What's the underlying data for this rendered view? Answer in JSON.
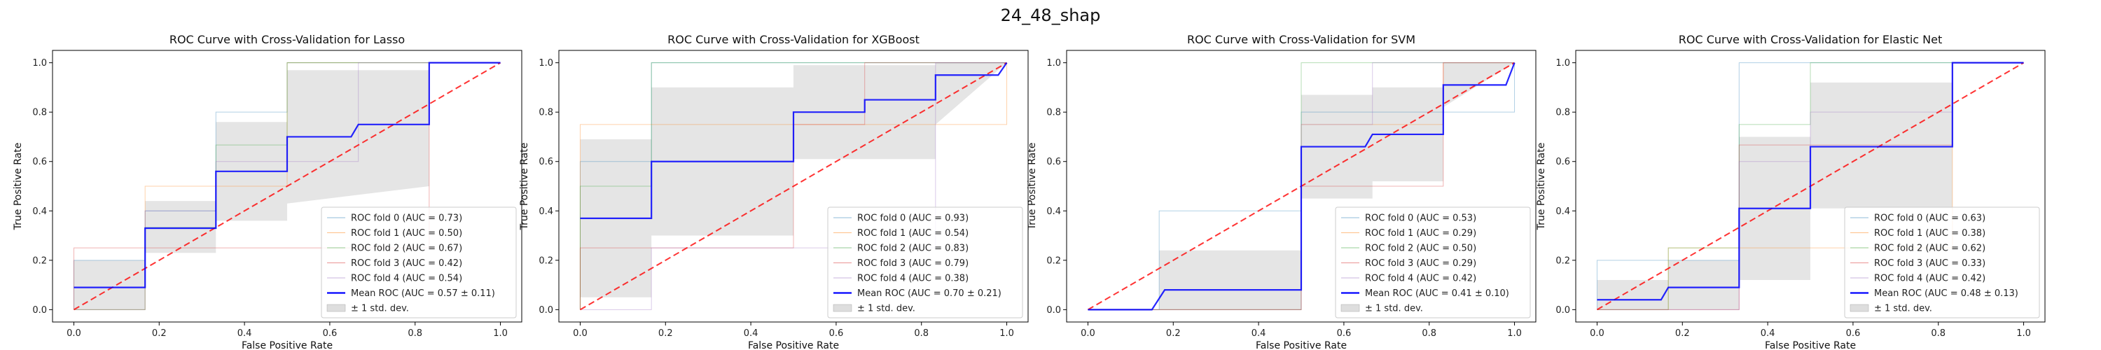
{
  "figure": {
    "suptitle": "24_48_shap"
  },
  "chart_data": [
    {
      "type": "line",
      "title": "ROC Curve with Cross-Validation for Lasso",
      "xlabel": "False Positive Rate",
      "ylabel": "True Positive Rate",
      "xlim": [
        -0.05,
        1.05
      ],
      "ylim": [
        -0.05,
        1.05
      ],
      "xticks": [
        "0.0",
        "0.2",
        "0.4",
        "0.6",
        "0.8",
        "1.0"
      ],
      "yticks": [
        "0.0",
        "0.2",
        "0.4",
        "0.6",
        "0.8",
        "1.0"
      ],
      "legend_position": "lower-right",
      "legend_labels": [
        "ROC fold 0 (AUC = 0.73)",
        "ROC fold 1 (AUC = 0.50)",
        "ROC fold 2 (AUC = 0.67)",
        "ROC fold 3 (AUC = 0.42)",
        "ROC fold 4 (AUC = 0.54)",
        "Mean ROC (AUC = 0.57 ± 0.11)",
        "± 1 std. dev."
      ],
      "folds": [
        [
          [
            0,
            0
          ],
          [
            0,
            0.2
          ],
          [
            0.167,
            0.2
          ],
          [
            0.167,
            0.4
          ],
          [
            0.333,
            0.4
          ],
          [
            0.333,
            0.8
          ],
          [
            0.5,
            0.8
          ],
          [
            0.5,
            1
          ],
          [
            1,
            1
          ]
        ],
        [
          [
            0,
            0
          ],
          [
            0.167,
            0
          ],
          [
            0.167,
            0.5
          ],
          [
            0.5,
            0.5
          ],
          [
            0.5,
            1
          ],
          [
            1,
            1
          ]
        ],
        [
          [
            0,
            0
          ],
          [
            0.167,
            0
          ],
          [
            0.167,
            0.333
          ],
          [
            0.333,
            0.333
          ],
          [
            0.333,
            0.667
          ],
          [
            0.5,
            0.667
          ],
          [
            0.5,
            1
          ],
          [
            1,
            1
          ]
        ],
        [
          [
            0,
            0
          ],
          [
            0,
            0.25
          ],
          [
            0.833,
            0.25
          ],
          [
            0.833,
            1
          ],
          [
            1,
            1
          ]
        ],
        [
          [
            0,
            0
          ],
          [
            0.167,
            0
          ],
          [
            0.167,
            0.4
          ],
          [
            0.333,
            0.4
          ],
          [
            0.333,
            0.6
          ],
          [
            0.667,
            0.6
          ],
          [
            0.667,
            1
          ],
          [
            1,
            1
          ]
        ]
      ],
      "mean": [
        [
          0,
          0.09
        ],
        [
          0.167,
          0.09
        ],
        [
          0.167,
          0.33
        ],
        [
          0.333,
          0.33
        ],
        [
          0.333,
          0.56
        ],
        [
          0.5,
          0.56
        ],
        [
          0.5,
          0.7
        ],
        [
          0.65,
          0.7
        ],
        [
          0.667,
          0.75
        ],
        [
          0.833,
          0.75
        ],
        [
          0.833,
          1
        ],
        [
          1,
          1
        ]
      ],
      "band": [
        [
          0,
          0,
          0.2
        ],
        [
          0.167,
          0,
          0.2
        ],
        [
          0.167,
          0.23,
          0.44
        ],
        [
          0.333,
          0.23,
          0.44
        ],
        [
          0.333,
          0.36,
          0.76
        ],
        [
          0.5,
          0.36,
          0.76
        ],
        [
          0.5,
          0.43,
          0.97
        ],
        [
          0.833,
          0.5,
          0.97
        ],
        [
          0.833,
          1,
          1
        ],
        [
          1,
          1,
          1
        ]
      ],
      "diagonal": [
        [
          0,
          0
        ],
        [
          1,
          1
        ]
      ]
    },
    {
      "type": "line",
      "title": "ROC Curve with Cross-Validation for XGBoost",
      "xlabel": "False Positive Rate",
      "ylabel": "True Positive Rate",
      "xlim": [
        -0.05,
        1.05
      ],
      "ylim": [
        -0.05,
        1.05
      ],
      "xticks": [
        "0.0",
        "0.2",
        "0.4",
        "0.6",
        "0.8",
        "1.0"
      ],
      "yticks": [
        "0.0",
        "0.2",
        "0.4",
        "0.6",
        "0.8",
        "1.0"
      ],
      "legend_position": "lower-right",
      "legend_labels": [
        "ROC fold 0 (AUC = 0.93)",
        "ROC fold 1 (AUC = 0.54)",
        "ROC fold 2 (AUC = 0.83)",
        "ROC fold 3 (AUC = 0.79)",
        "ROC fold 4 (AUC = 0.38)",
        "Mean ROC (AUC = 0.70 ± 0.21)",
        "± 1 std. dev."
      ],
      "folds": [
        [
          [
            0,
            0
          ],
          [
            0,
            0.6
          ],
          [
            0.167,
            0.6
          ],
          [
            0.167,
            1
          ],
          [
            1,
            1
          ]
        ],
        [
          [
            0,
            0
          ],
          [
            0,
            0.75
          ],
          [
            0.5,
            0.75
          ],
          [
            0.5,
            0.75
          ],
          [
            1,
            0.75
          ],
          [
            1,
            1
          ]
        ],
        [
          [
            0,
            0
          ],
          [
            0,
            0.5
          ],
          [
            0.167,
            0.5
          ],
          [
            0.167,
            1
          ],
          [
            1,
            1
          ]
        ],
        [
          [
            0,
            0
          ],
          [
            0,
            0.25
          ],
          [
            0.5,
            0.25
          ],
          [
            0.5,
            0.75
          ],
          [
            0.667,
            0.75
          ],
          [
            0.667,
            1
          ],
          [
            1,
            1
          ]
        ],
        [
          [
            0,
            0
          ],
          [
            0.167,
            0
          ],
          [
            0.167,
            0.25
          ],
          [
            0.833,
            0.25
          ],
          [
            0.833,
            1
          ],
          [
            1,
            1
          ]
        ]
      ],
      "mean": [
        [
          0,
          0.37
        ],
        [
          0.167,
          0.37
        ],
        [
          0.167,
          0.6
        ],
        [
          0.5,
          0.6
        ],
        [
          0.5,
          0.8
        ],
        [
          0.667,
          0.8
        ],
        [
          0.667,
          0.85
        ],
        [
          0.833,
          0.85
        ],
        [
          0.833,
          0.95
        ],
        [
          0.98,
          0.95
        ],
        [
          1,
          1
        ]
      ],
      "band": [
        [
          0,
          0.05,
          0.69
        ],
        [
          0.167,
          0.05,
          0.69
        ],
        [
          0.167,
          0.3,
          0.9
        ],
        [
          0.5,
          0.3,
          0.9
        ],
        [
          0.5,
          0.61,
          0.99
        ],
        [
          0.833,
          0.61,
          0.99
        ],
        [
          0.833,
          0.75,
          1
        ],
        [
          1,
          1,
          1
        ]
      ],
      "diagonal": [
        [
          0,
          0
        ],
        [
          1,
          1
        ]
      ]
    },
    {
      "type": "line",
      "title": "ROC Curve with Cross-Validation for SVM",
      "xlabel": "False Positive Rate",
      "ylabel": "True Positive Rate",
      "xlim": [
        -0.05,
        1.05
      ],
      "ylim": [
        -0.05,
        1.05
      ],
      "xticks": [
        "0.0",
        "0.2",
        "0.4",
        "0.6",
        "0.8",
        "1.0"
      ],
      "yticks": [
        "0.0",
        "0.2",
        "0.4",
        "0.6",
        "0.8",
        "1.0"
      ],
      "legend_position": "lower-right",
      "legend_labels": [
        "ROC fold 0 (AUC = 0.53)",
        "ROC fold 1 (AUC = 0.29)",
        "ROC fold 2 (AUC = 0.50)",
        "ROC fold 3 (AUC = 0.29)",
        "ROC fold 4 (AUC = 0.42)",
        "Mean ROC (AUC = 0.41 ± 0.10)",
        "± 1 std. dev."
      ],
      "folds": [
        [
          [
            0,
            0
          ],
          [
            0.167,
            0
          ],
          [
            0.167,
            0.4
          ],
          [
            0.5,
            0.4
          ],
          [
            0.5,
            0.8
          ],
          [
            1,
            0.8
          ],
          [
            1,
            1
          ]
        ],
        [
          [
            0,
            0
          ],
          [
            0.5,
            0
          ],
          [
            0.5,
            0.75
          ],
          [
            0.833,
            0.75
          ],
          [
            0.833,
            1
          ],
          [
            1,
            1
          ]
        ],
        [
          [
            0,
            0
          ],
          [
            0.5,
            0
          ],
          [
            0.5,
            1
          ],
          [
            1,
            1
          ]
        ],
        [
          [
            0,
            0
          ],
          [
            0.5,
            0
          ],
          [
            0.5,
            0.5
          ],
          [
            0.833,
            0.5
          ],
          [
            0.833,
            1
          ],
          [
            1,
            1
          ]
        ],
        [
          [
            0,
            0
          ],
          [
            0.5,
            0
          ],
          [
            0.5,
            0.75
          ],
          [
            0.667,
            0.75
          ],
          [
            0.667,
            1
          ],
          [
            1,
            1
          ]
        ]
      ],
      "mean": [
        [
          0,
          0
        ],
        [
          0.15,
          0
        ],
        [
          0.18,
          0.08
        ],
        [
          0.5,
          0.08
        ],
        [
          0.5,
          0.66
        ],
        [
          0.65,
          0.66
        ],
        [
          0.667,
          0.71
        ],
        [
          0.833,
          0.71
        ],
        [
          0.833,
          0.91
        ],
        [
          0.98,
          0.91
        ],
        [
          1,
          1
        ]
      ],
      "band": [
        [
          0,
          0,
          0
        ],
        [
          0.167,
          0,
          0
        ],
        [
          0.167,
          0,
          0.24
        ],
        [
          0.5,
          0,
          0.24
        ],
        [
          0.5,
          0.45,
          0.87
        ],
        [
          0.667,
          0.45,
          0.87
        ],
        [
          0.667,
          0.52,
          0.9
        ],
        [
          0.833,
          0.52,
          0.9
        ],
        [
          0.833,
          0.82,
          1
        ],
        [
          1,
          1,
          1
        ]
      ],
      "diagonal": [
        [
          0,
          0
        ],
        [
          1,
          1
        ]
      ]
    },
    {
      "type": "line",
      "title": "ROC Curve with Cross-Validation for Elastic Net",
      "xlabel": "False Positive Rate",
      "ylabel": "True Positive Rate",
      "xlim": [
        -0.05,
        1.05
      ],
      "ylim": [
        -0.05,
        1.05
      ],
      "xticks": [
        "0.0",
        "0.2",
        "0.4",
        "0.6",
        "0.8",
        "1.0"
      ],
      "yticks": [
        "0.0",
        "0.2",
        "0.4",
        "0.6",
        "0.8",
        "1.0"
      ],
      "legend_position": "lower-right",
      "legend_labels": [
        "ROC fold 0 (AUC = 0.63)",
        "ROC fold 1 (AUC = 0.38)",
        "ROC fold 2 (AUC = 0.62)",
        "ROC fold 3 (AUC = 0.33)",
        "ROC fold 4 (AUC = 0.42)",
        "Mean ROC (AUC = 0.48 ± 0.13)",
        "± 1 std. dev."
      ],
      "folds": [
        [
          [
            0,
            0
          ],
          [
            0,
            0.2
          ],
          [
            0.333,
            0.2
          ],
          [
            0.333,
            1
          ],
          [
            1,
            1
          ]
        ],
        [
          [
            0,
            0
          ],
          [
            0.167,
            0
          ],
          [
            0.167,
            0.25
          ],
          [
            0.833,
            0.25
          ],
          [
            0.833,
            1
          ],
          [
            1,
            1
          ]
        ],
        [
          [
            0,
            0
          ],
          [
            0.167,
            0
          ],
          [
            0.167,
            0.25
          ],
          [
            0.333,
            0.25
          ],
          [
            0.333,
            0.75
          ],
          [
            0.5,
            0.75
          ],
          [
            0.5,
            1
          ],
          [
            1,
            1
          ]
        ],
        [
          [
            0,
            0
          ],
          [
            0.333,
            0
          ],
          [
            0.333,
            0.667
          ],
          [
            0.5,
            0.667
          ],
          [
            0.5,
            0.667
          ],
          [
            0.833,
            0.667
          ],
          [
            0.833,
            1
          ],
          [
            1,
            1
          ]
        ],
        [
          [
            0,
            0
          ],
          [
            0.333,
            0
          ],
          [
            0.333,
            0.6
          ],
          [
            0.5,
            0.6
          ],
          [
            0.5,
            0.8
          ],
          [
            0.833,
            0.8
          ],
          [
            0.833,
            1
          ],
          [
            1,
            1
          ]
        ]
      ],
      "mean": [
        [
          0,
          0.04
        ],
        [
          0.15,
          0.04
        ],
        [
          0.167,
          0.09
        ],
        [
          0.333,
          0.09
        ],
        [
          0.333,
          0.41
        ],
        [
          0.5,
          0.41
        ],
        [
          0.5,
          0.66
        ],
        [
          0.833,
          0.66
        ],
        [
          0.833,
          1
        ],
        [
          1,
          1
        ]
      ],
      "band": [
        [
          0,
          0,
          0.12
        ],
        [
          0.167,
          0,
          0.12
        ],
        [
          0.167,
          0,
          0.2
        ],
        [
          0.333,
          0,
          0.2
        ],
        [
          0.333,
          0.12,
          0.7
        ],
        [
          0.5,
          0.12,
          0.7
        ],
        [
          0.5,
          0.41,
          0.92
        ],
        [
          0.833,
          0.41,
          0.92
        ],
        [
          0.833,
          1,
          1
        ],
        [
          1,
          1,
          1
        ]
      ],
      "diagonal": [
        [
          0,
          0
        ],
        [
          1,
          1
        ]
      ]
    }
  ]
}
